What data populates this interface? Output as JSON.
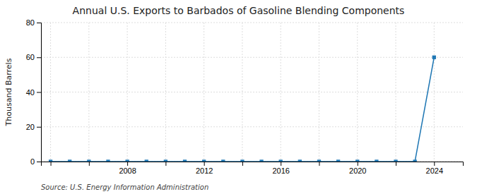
{
  "chart_data": {
    "type": "line",
    "title": "Annual U.S. Exports to Barbados of Gasoline Blending Components",
    "ylabel": "Thousand Barrels",
    "annotations": [
      "Source: U.S. Energy Information Administration"
    ],
    "x": [
      2004,
      2005,
      2006,
      2007,
      2008,
      2009,
      2010,
      2011,
      2012,
      2013,
      2014,
      2015,
      2016,
      2017,
      2018,
      2019,
      2020,
      2021,
      2022,
      2023,
      2024
    ],
    "values": [
      0,
      0,
      0,
      0,
      0,
      0,
      0,
      0,
      0,
      0,
      0,
      0,
      0,
      0,
      0,
      0,
      0,
      0,
      0,
      0,
      60
    ],
    "xlim": [
      2003.5,
      2025.5
    ],
    "xticks": [
      {
        "value": 2004,
        "label": null
      },
      {
        "value": 2006,
        "label": null
      },
      2008,
      {
        "value": 2010,
        "label": null
      },
      2012,
      {
        "value": 2014,
        "label": null
      },
      2016,
      {
        "value": 2018,
        "label": null
      },
      2020,
      {
        "value": 2022,
        "label": null
      },
      2024
    ],
    "ylim": [
      0,
      80
    ],
    "yticks": [
      0,
      20,
      40,
      60,
      80
    ],
    "grid": true,
    "marker": "square"
  }
}
